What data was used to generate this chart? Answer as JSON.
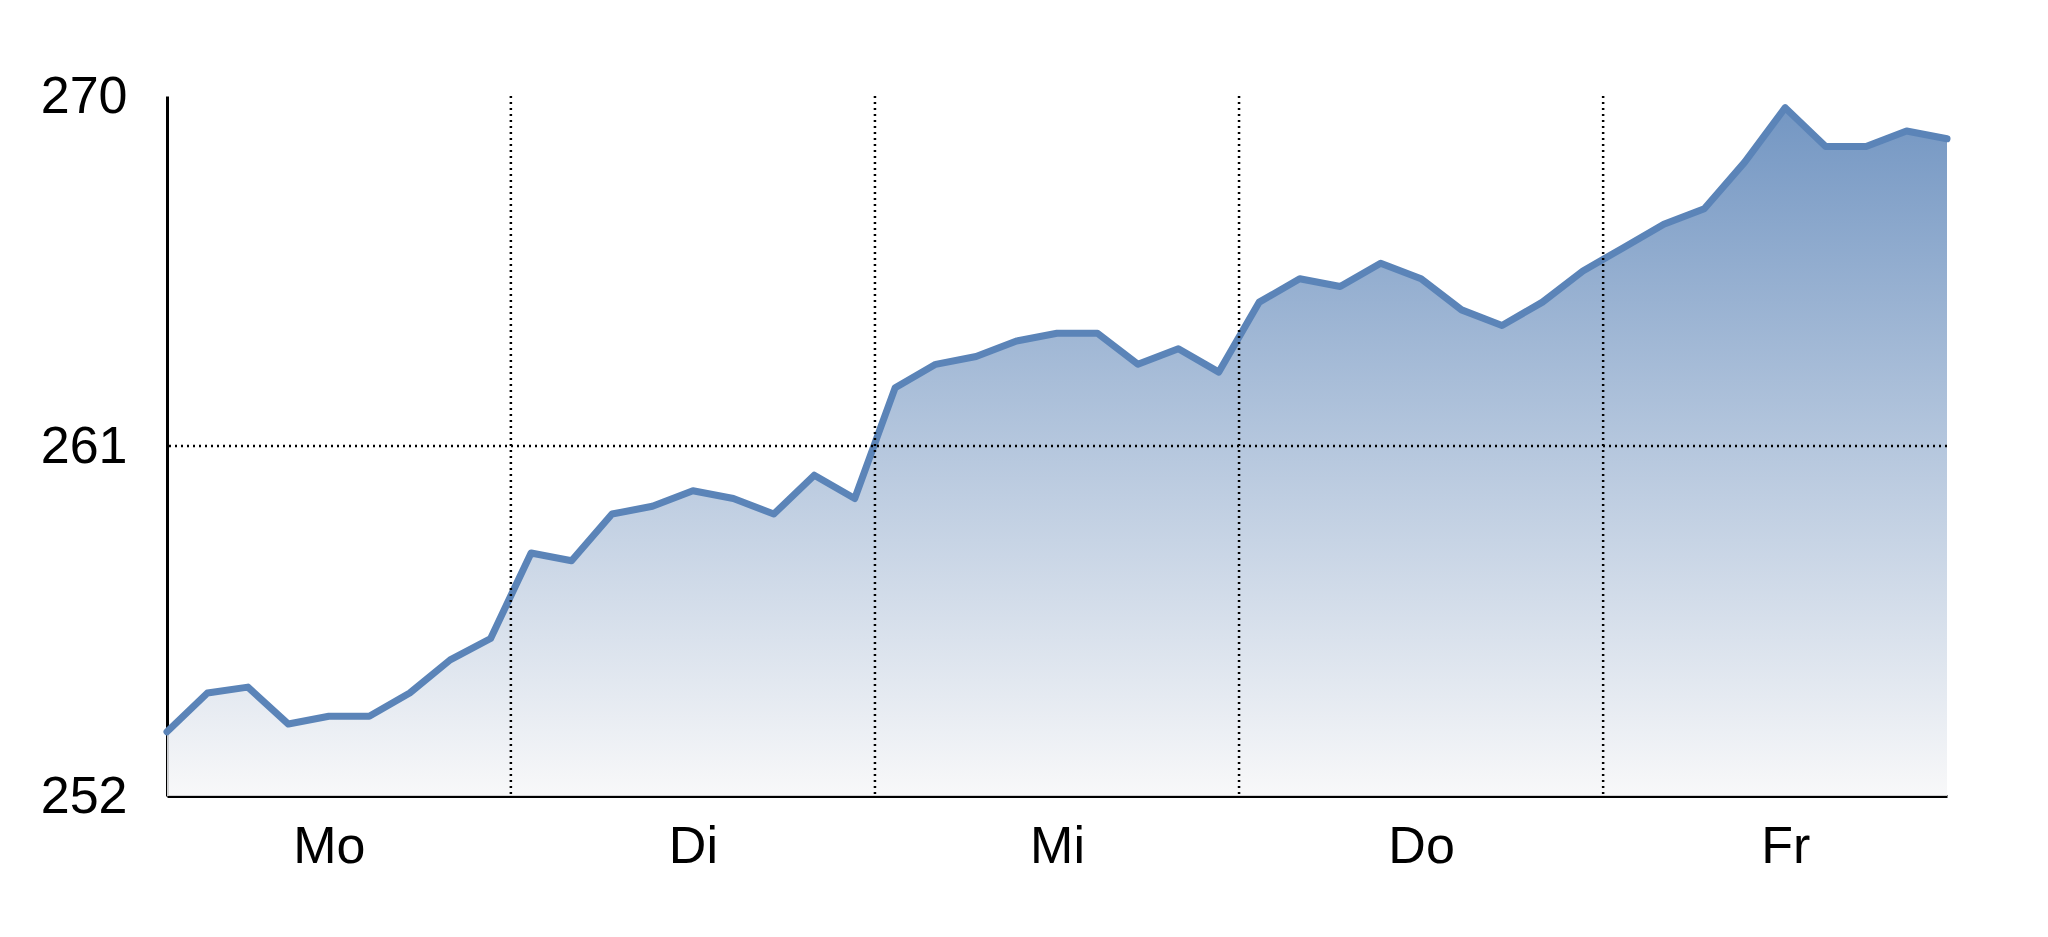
{
  "chart_data": {
    "type": "area",
    "categories": [
      null,
      null,
      null,
      null,
      "Mo",
      null,
      null,
      null,
      null,
      null,
      null,
      null,
      null,
      "Di",
      null,
      null,
      null,
      null,
      null,
      null,
      null,
      null,
      "Mi",
      null,
      null,
      null,
      null,
      null,
      null,
      null,
      null,
      "Do",
      null,
      null,
      null,
      null,
      null,
      null,
      null,
      null,
      "Fr",
      null,
      null,
      null,
      null
    ],
    "series": [
      {
        "color": "#5b84b8",
        "values": [
          253.65,
          254.65,
          254.8,
          253.85,
          254.05,
          254.05,
          254.65,
          255.5,
          256.05,
          258.25,
          258.05,
          259.25,
          259.45,
          259.85,
          259.65,
          259.25,
          260.25,
          259.65,
          262.5,
          263.1,
          263.3,
          263.7,
          263.9,
          263.9,
          263.1,
          263.5,
          262.9,
          264.7,
          265.3,
          265.1,
          265.7,
          265.3,
          264.5,
          264.1,
          264.7,
          265.5,
          266.1,
          266.7,
          267.1,
          268.3,
          269.7,
          268.7,
          268.7,
          269.1,
          268.9
        ]
      }
    ],
    "ylim": [
      252,
      270
    ],
    "yticks": [
      252,
      261,
      270
    ],
    "line_style": "solid",
    "marker": "none",
    "ref_lines": [
      {
        "axis": "y",
        "value": 261,
        "line_style": "dotted"
      }
    ]
  }
}
